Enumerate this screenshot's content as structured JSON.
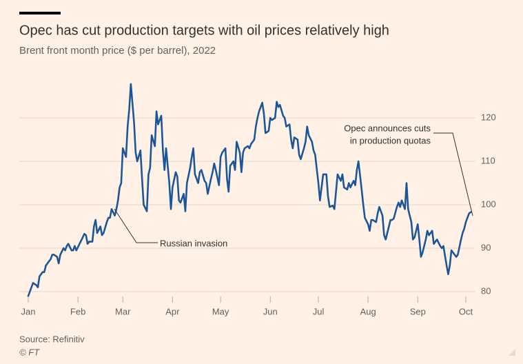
{
  "chart_data": {
    "type": "line",
    "title": "Opec has cut production targets with oil prices relatively high",
    "subtitle": "Brent front month price ($ per barrel), 2022",
    "source": "Source: Refinitiv",
    "credit": "© FT",
    "annotations": [
      {
        "text": [
          "Russian invasion"
        ]
      },
      {
        "text": [
          "Opec announces cuts",
          "in production quotas"
        ]
      }
    ],
    "xlim": [
      1,
      280
    ],
    "xticks": [
      {
        "value": 1,
        "label": "Jan"
      },
      {
        "value": 32,
        "label": "Feb"
      },
      {
        "value": 60,
        "label": "Mar"
      },
      {
        "value": 91,
        "label": "Apr"
      },
      {
        "value": 121,
        "label": "May"
      },
      {
        "value": 152,
        "label": "Jun"
      },
      {
        "value": 182,
        "label": "Jul"
      },
      {
        "value": 213,
        "label": "Aug"
      },
      {
        "value": 244,
        "label": "Sep"
      },
      {
        "value": 274,
        "label": "Oct"
      }
    ],
    "ylim": [
      77.3,
      130
    ],
    "yticks": [
      80,
      90,
      100,
      110,
      120
    ],
    "grid": true,
    "x": [
      1,
      2,
      3,
      4,
      6,
      7,
      8,
      10,
      11,
      12,
      13,
      15,
      16,
      17,
      19,
      20,
      21,
      23,
      24,
      25,
      26,
      28,
      29,
      30,
      31,
      33,
      35,
      36,
      37,
      38,
      39,
      41,
      42,
      43,
      44,
      46,
      47,
      48,
      50,
      51,
      52,
      53,
      55,
      56,
      57,
      58,
      59,
      60,
      62,
      63,
      64,
      65,
      67,
      68,
      69,
      71,
      72,
      73,
      75,
      76,
      77,
      78,
      80,
      81,
      82,
      84,
      85,
      86,
      87,
      89,
      90,
      91,
      93,
      94,
      95,
      96,
      98,
      99,
      100,
      102,
      103,
      104,
      105,
      107,
      108,
      109,
      111,
      112,
      113,
      115,
      116,
      117,
      118,
      120,
      121,
      122,
      124,
      125,
      126,
      127,
      129,
      130,
      131,
      133,
      134,
      135,
      136,
      138,
      139,
      140,
      142,
      143,
      144,
      145,
      147,
      148,
      149,
      151,
      152,
      153,
      155,
      156,
      157,
      158,
      160,
      161,
      162,
      164,
      165,
      166,
      167,
      169,
      170,
      171,
      173,
      174,
      175,
      176,
      178,
      179,
      180,
      182,
      183,
      184,
      185,
      187,
      188,
      189,
      191,
      192,
      193,
      194,
      196,
      197,
      198,
      200,
      201,
      202,
      204,
      205,
      206,
      207,
      209,
      210,
      211,
      213,
      214,
      215,
      216,
      218,
      219,
      220,
      222,
      223,
      224,
      225,
      227,
      228,
      229,
      231,
      232,
      233,
      234,
      236,
      237,
      238,
      240,
      241,
      242,
      244,
      245,
      246,
      247,
      249,
      250,
      251,
      253,
      254,
      255,
      256,
      258,
      259,
      260,
      262,
      263,
      264,
      265,
      267,
      268,
      269,
      271,
      272,
      273,
      274,
      276,
      277
    ],
    "series": [
      {
        "color": "#1d5698",
        "values": [
          79,
          80,
          81,
          82,
          81.5,
          81,
          83.5,
          84.5,
          84.5,
          86,
          86.5,
          87.5,
          88.5,
          88.5,
          88,
          86.5,
          88.5,
          90,
          89.5,
          90.5,
          91,
          89.5,
          89.5,
          90.5,
          89.5,
          91,
          92.5,
          93.3,
          93,
          91,
          91.5,
          91.5,
          95,
          96.5,
          93.5,
          95,
          93,
          93.5,
          96,
          97,
          97,
          99,
          97.5,
          99,
          101,
          104,
          105,
          113,
          111,
          118,
          122,
          127.8,
          119,
          112,
          110,
          112.5,
          106,
          100,
          98.5,
          107,
          108.5,
          116,
          113.5,
          121.5,
          118.5,
          120.5,
          112.5,
          108,
          113,
          105,
          99,
          104,
          107.5,
          106.5,
          101,
          100.5,
          102.5,
          98.5,
          105,
          108.5,
          111,
          113,
          107,
          105,
          107.5,
          108,
          105.5,
          105,
          102.5,
          106,
          107.5,
          109.5,
          108,
          104.5,
          111,
          112,
          113,
          106,
          103,
          109,
          110,
          108,
          114.5,
          112,
          107.5,
          112,
          113,
          113.5,
          113,
          114,
          115,
          118,
          120,
          121.5,
          123.5,
          121,
          116.5,
          117,
          120,
          119.5,
          120,
          123.7,
          122.5,
          123,
          120.5,
          120,
          118,
          118.5,
          115,
          113,
          115.5,
          115,
          111.5,
          110.5,
          113,
          114.5,
          118,
          116,
          114.5,
          112.5,
          111.5,
          105,
          101,
          104,
          107,
          107,
          102,
          99.5,
          99.8,
          99,
          103,
          107,
          105.5,
          107,
          104,
          103.5,
          105,
          104,
          105.5,
          104.5,
          108,
          110,
          103.5,
          100,
          97,
          95.5,
          94,
          96.5,
          96.5,
          96,
          98,
          99.5,
          97.5,
          93,
          92,
          93.5,
          96.5,
          96.5,
          96.8,
          99.5,
          100.5,
          99.5,
          101,
          99,
          105,
          99,
          96,
          92,
          92.5,
          95.5,
          92,
          88,
          89,
          92,
          94,
          93,
          94,
          91,
          91.5,
          92,
          90.5,
          90,
          90.5,
          86,
          84,
          86,
          89.5,
          88.5,
          88,
          88.5,
          92,
          93.5,
          94.5,
          96,
          98,
          98.3
        ]
      }
    ]
  }
}
